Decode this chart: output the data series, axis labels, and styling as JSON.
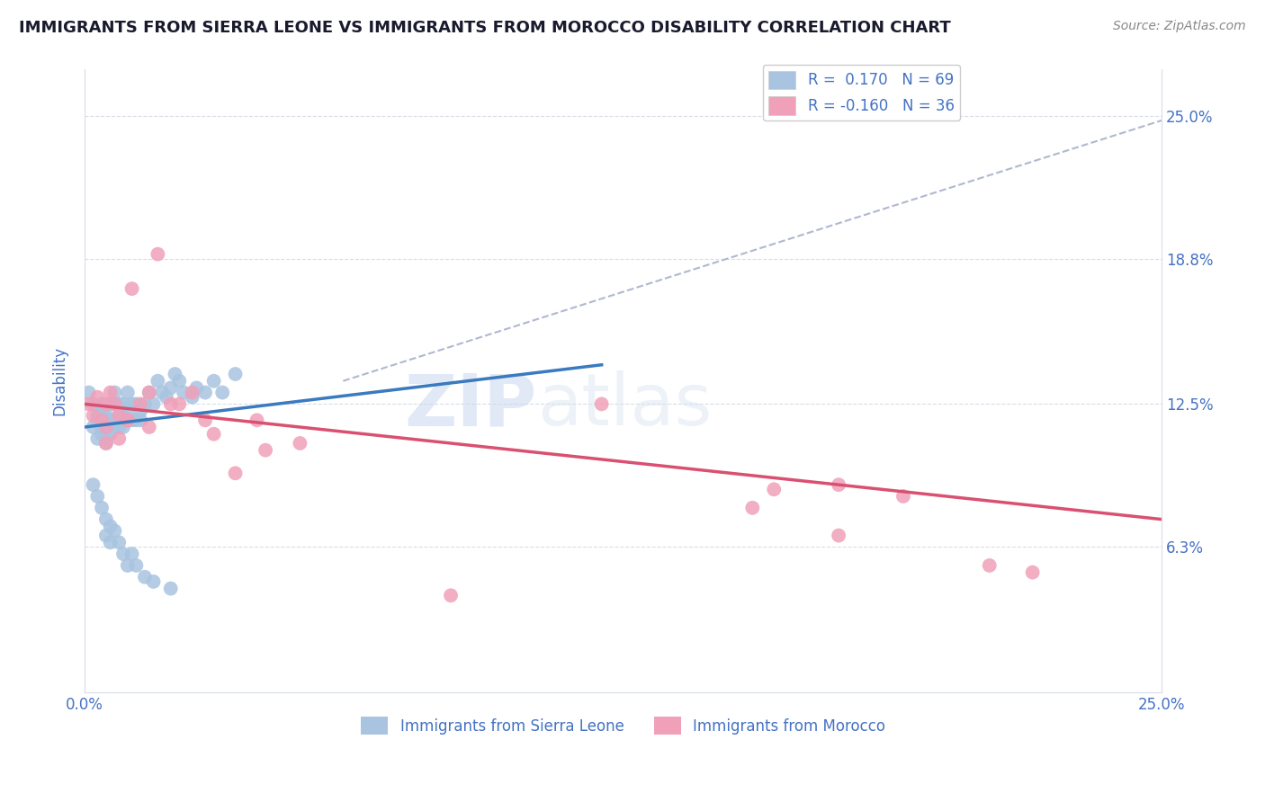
{
  "title": "IMMIGRANTS FROM SIERRA LEONE VS IMMIGRANTS FROM MOROCCO DISABILITY CORRELATION CHART",
  "source_text": "Source: ZipAtlas.com",
  "ylabel": "Disability",
  "xlim": [
    0.0,
    0.25
  ],
  "ylim": [
    0.0,
    0.27
  ],
  "ytick_vals": [
    0.063,
    0.125,
    0.188,
    0.25
  ],
  "ytick_labels": [
    "6.3%",
    "12.5%",
    "18.8%",
    "25.0%"
  ],
  "xtick_vals": [
    0.0,
    0.25
  ],
  "xtick_labels": [
    "0.0%",
    "25.0%"
  ],
  "sierra_leone_color": "#a8c4e0",
  "morocco_color": "#f0a0b8",
  "sierra_leone_line_color": "#3a7abf",
  "morocco_line_color": "#d95070",
  "dashed_line_color": "#b0b8d0",
  "watermark_text": "ZIPatlas",
  "legend_sierra_label": "R =  0.170   N = 69",
  "legend_morocco_label": "R = -0.160   N = 36",
  "title_color": "#1a1a2e",
  "tick_label_color": "#4472c4",
  "source_color": "#888888",
  "grid_color": "#d8dce8",
  "sierra_leone_x": [
    0.001,
    0.002,
    0.002,
    0.003,
    0.003,
    0.003,
    0.004,
    0.004,
    0.004,
    0.004,
    0.005,
    0.005,
    0.005,
    0.005,
    0.005,
    0.006,
    0.006,
    0.006,
    0.007,
    0.007,
    0.007,
    0.007,
    0.008,
    0.008,
    0.008,
    0.009,
    0.009,
    0.009,
    0.01,
    0.01,
    0.01,
    0.011,
    0.011,
    0.012,
    0.012,
    0.013,
    0.013,
    0.014,
    0.015,
    0.016,
    0.017,
    0.018,
    0.019,
    0.02,
    0.021,
    0.022,
    0.023,
    0.025,
    0.026,
    0.028,
    0.03,
    0.032,
    0.035,
    0.002,
    0.003,
    0.004,
    0.005,
    0.005,
    0.006,
    0.006,
    0.007,
    0.008,
    0.009,
    0.01,
    0.011,
    0.012,
    0.014,
    0.016,
    0.02
  ],
  "sierra_leone_y": [
    0.13,
    0.125,
    0.115,
    0.12,
    0.11,
    0.118,
    0.122,
    0.125,
    0.115,
    0.112,
    0.12,
    0.118,
    0.115,
    0.108,
    0.112,
    0.125,
    0.118,
    0.112,
    0.13,
    0.125,
    0.118,
    0.115,
    0.125,
    0.12,
    0.115,
    0.125,
    0.12,
    0.115,
    0.13,
    0.122,
    0.118,
    0.125,
    0.118,
    0.125,
    0.118,
    0.122,
    0.118,
    0.125,
    0.13,
    0.125,
    0.135,
    0.13,
    0.128,
    0.132,
    0.138,
    0.135,
    0.13,
    0.128,
    0.132,
    0.13,
    0.135,
    0.13,
    0.138,
    0.09,
    0.085,
    0.08,
    0.075,
    0.068,
    0.072,
    0.065,
    0.07,
    0.065,
    0.06,
    0.055,
    0.06,
    0.055,
    0.05,
    0.048,
    0.045
  ],
  "morocco_x": [
    0.001,
    0.002,
    0.003,
    0.004,
    0.005,
    0.005,
    0.006,
    0.007,
    0.008,
    0.01,
    0.011,
    0.013,
    0.015,
    0.017,
    0.02,
    0.022,
    0.025,
    0.028,
    0.03,
    0.035,
    0.04,
    0.042,
    0.05,
    0.085,
    0.12,
    0.155,
    0.16,
    0.175,
    0.19,
    0.21,
    0.005,
    0.008,
    0.01,
    0.015,
    0.22,
    0.175
  ],
  "morocco_y": [
    0.125,
    0.12,
    0.128,
    0.118,
    0.125,
    0.115,
    0.13,
    0.125,
    0.12,
    0.118,
    0.175,
    0.125,
    0.13,
    0.19,
    0.125,
    0.125,
    0.13,
    0.118,
    0.112,
    0.095,
    0.118,
    0.105,
    0.108,
    0.042,
    0.125,
    0.08,
    0.088,
    0.09,
    0.085,
    0.055,
    0.108,
    0.11,
    0.118,
    0.115,
    0.052,
    0.068
  ],
  "sl_line_x0": 0.0,
  "sl_line_x1": 0.12,
  "sl_line_y0": 0.115,
  "sl_line_y1": 0.142,
  "mo_line_x0": 0.0,
  "mo_line_x1": 0.25,
  "mo_line_y0": 0.125,
  "mo_line_y1": 0.075,
  "dash_line_x0": 0.06,
  "dash_line_x1": 0.25,
  "dash_line_y0": 0.135,
  "dash_line_y1": 0.248
}
